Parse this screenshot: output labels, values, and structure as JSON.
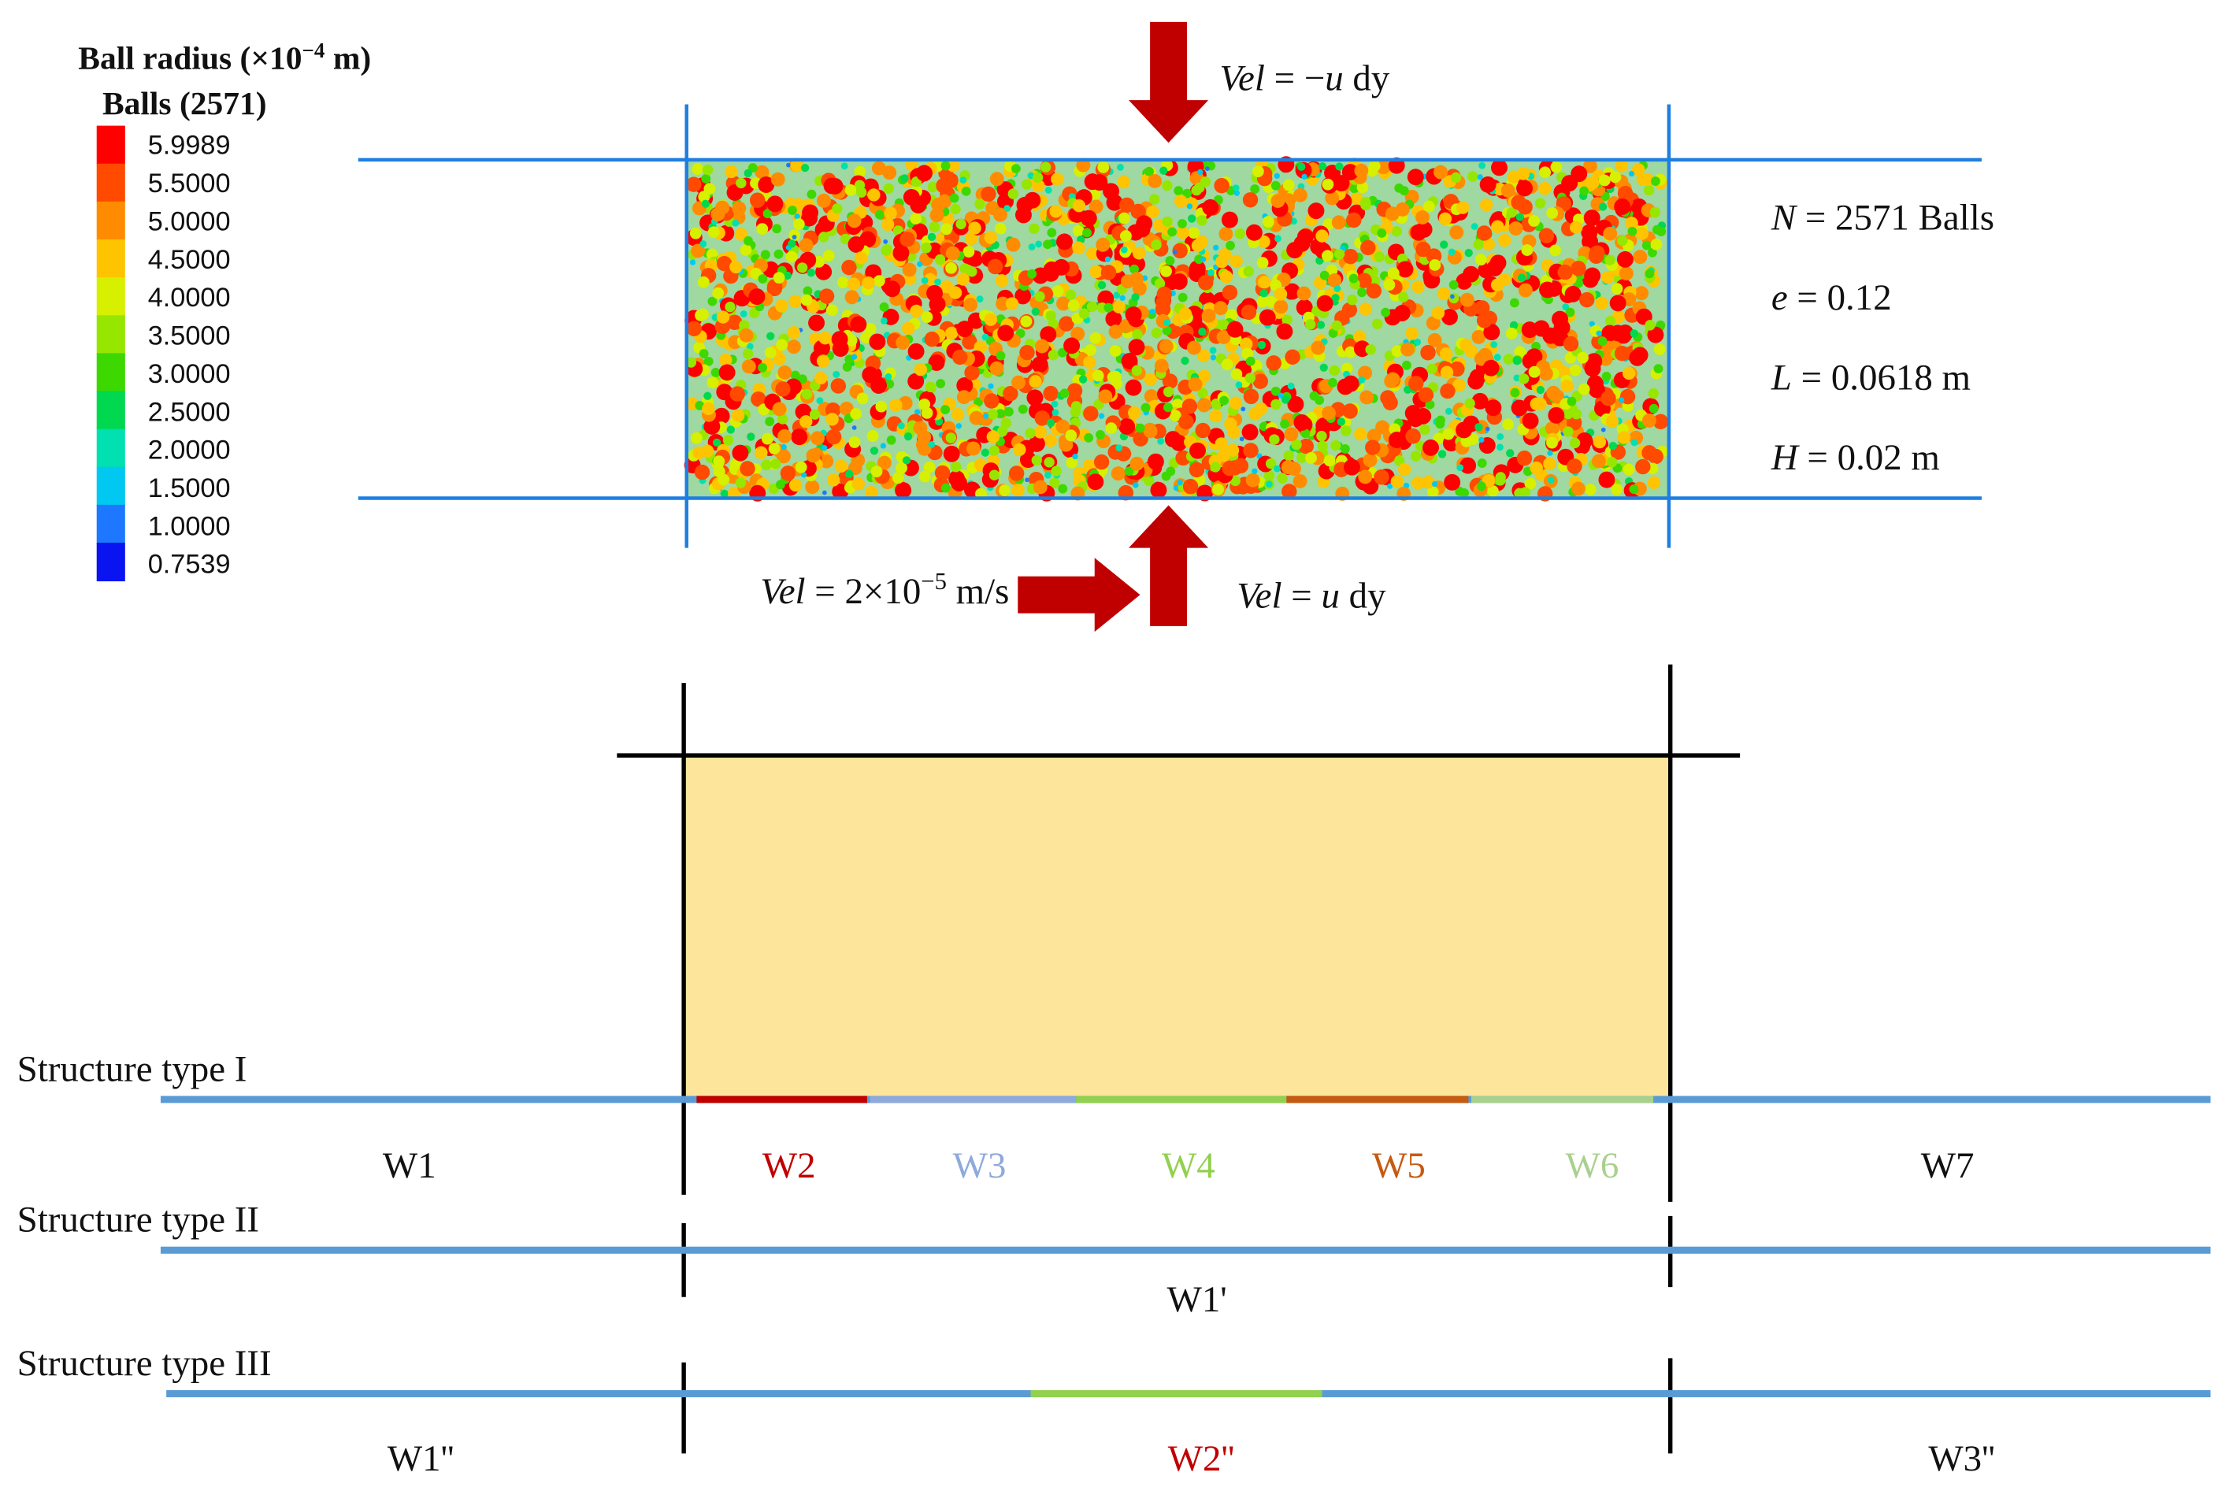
{
  "legend": {
    "title": [
      "Ball radius  (×10",
      "−4",
      " m)"
    ],
    "subtitle": "Balls (2571)",
    "labels": [
      "5.9989",
      "5.5000",
      "5.0000",
      "4.5000",
      "4.0000",
      "3.5000",
      "3.0000",
      "2.5000",
      "2.0000",
      "1.5000",
      "1.0000",
      "0.7539"
    ]
  },
  "annotations": {
    "top_velocity": [
      "Vel",
      " = −",
      "u",
      " dy"
    ],
    "bottom_velocity": [
      "Vel",
      " = ",
      "u",
      " dy"
    ],
    "shear_velocity": [
      "Vel",
      " = 2×10",
      "−5",
      " m/s"
    ]
  },
  "parameters": [
    [
      "N",
      " = 2571 Balls"
    ],
    [
      "e",
      " = 0.12"
    ],
    [
      "L",
      " = 0.0618 m"
    ],
    [
      "H",
      " = 0.02 m"
    ]
  ],
  "structures": [
    {
      "title": "Structure type I",
      "walls": [
        "W1",
        "W2",
        "W3",
        "W4",
        "W5",
        "W6",
        "W7"
      ]
    },
    {
      "title": "Structure type II",
      "walls": [
        "W1'"
      ]
    },
    {
      "title": "Structure type III",
      "walls": [
        "W1''",
        "W2''",
        "W3''"
      ]
    }
  ]
}
